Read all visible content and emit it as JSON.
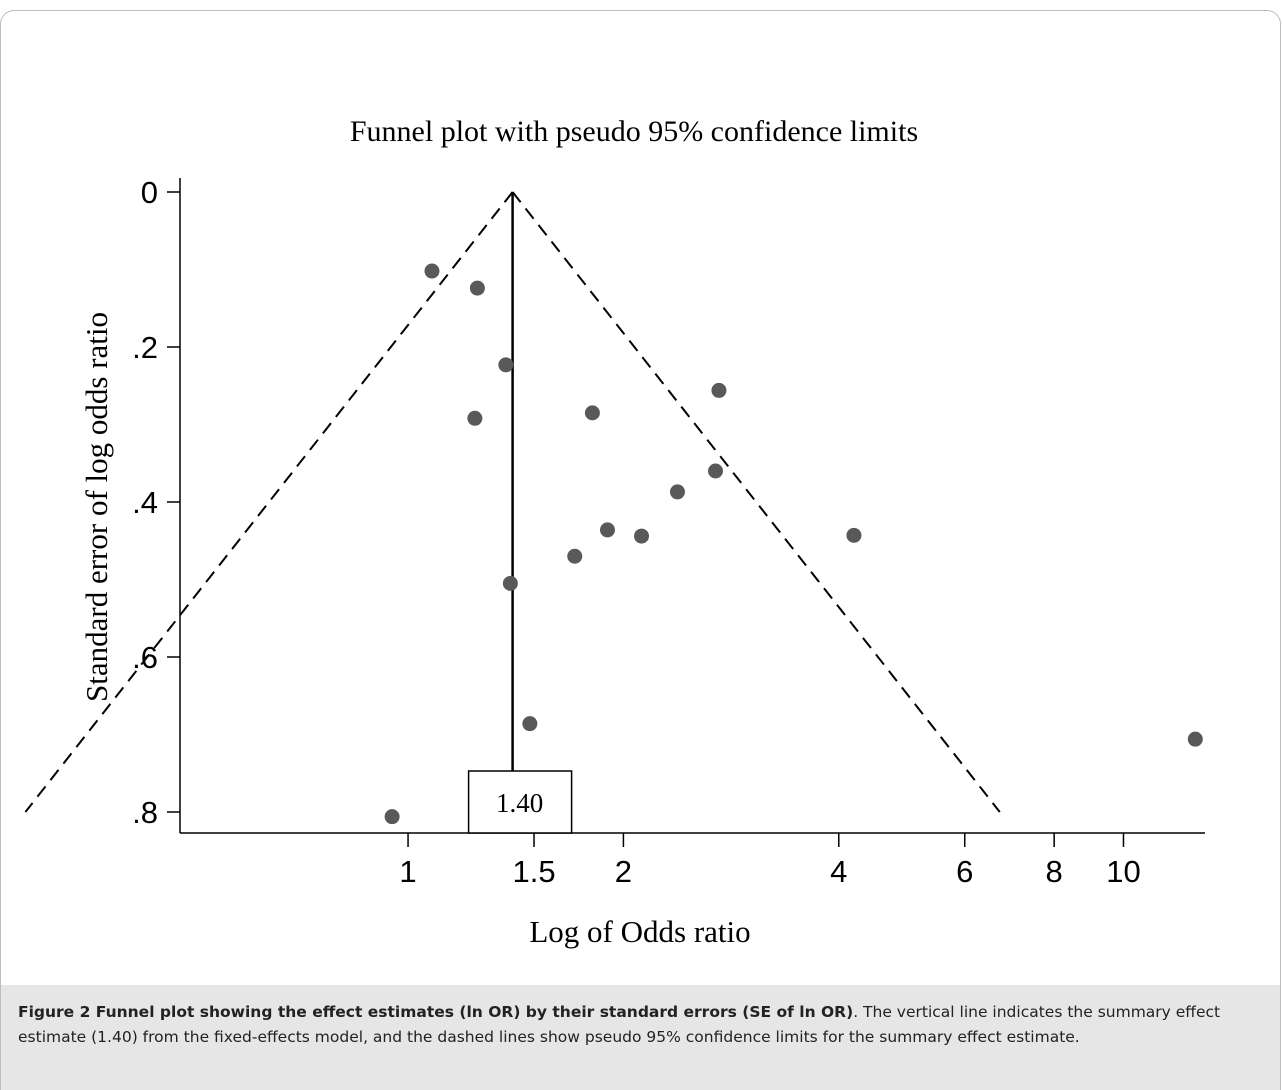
{
  "chart_data": {
    "type": "scatter",
    "title": "Funnel plot with pseudo 95% confidence limits",
    "xlabel": "Log of Odds ratio",
    "ylabel": "Standard error of log odds ratio",
    "x_scale": "log",
    "y_reversed": true,
    "xlim": [
      0.48,
      13.0
    ],
    "ylim": [
      0,
      0.82
    ],
    "x_ticks": [
      1,
      1.5,
      2,
      4,
      6,
      8,
      10
    ],
    "x_tick_labels": [
      "1",
      "1.5",
      "2",
      "4",
      "6",
      "8",
      "10"
    ],
    "y_ticks": [
      0,
      0.2,
      0.4,
      0.6,
      0.8
    ],
    "y_tick_labels": [
      "0",
      ".2",
      ".4",
      ".6",
      ".8"
    ],
    "summary_estimate": 1.4,
    "summary_label": "1.40",
    "confidence_limits": "pseudo 95%",
    "points": [
      {
        "x": 1.08,
        "y": 0.102
      },
      {
        "x": 1.25,
        "y": 0.124
      },
      {
        "x": 1.37,
        "y": 0.223
      },
      {
        "x": 1.24,
        "y": 0.292
      },
      {
        "x": 2.72,
        "y": 0.256
      },
      {
        "x": 1.81,
        "y": 0.285
      },
      {
        "x": 2.69,
        "y": 0.36
      },
      {
        "x": 2.38,
        "y": 0.387
      },
      {
        "x": 1.9,
        "y": 0.436
      },
      {
        "x": 2.12,
        "y": 0.444
      },
      {
        "x": 4.2,
        "y": 0.443
      },
      {
        "x": 1.71,
        "y": 0.47
      },
      {
        "x": 1.39,
        "y": 0.505
      },
      {
        "x": 1.48,
        "y": 0.686
      },
      {
        "x": 0.95,
        "y": 0.806
      },
      {
        "x": 12.6,
        "y": 0.706
      }
    ],
    "point_color": "#595959",
    "line_color": "#000000"
  },
  "caption": {
    "bold": "Figure 2 Funnel plot showing the effect estimates (ln OR) by their standard errors (SE of ln OR)",
    "text": ". The vertical line indicates the summary effect estimate (1.40) from the fixed-effects model, and the dashed lines show pseudo 95% confidence limits for the summary effect estimate."
  }
}
